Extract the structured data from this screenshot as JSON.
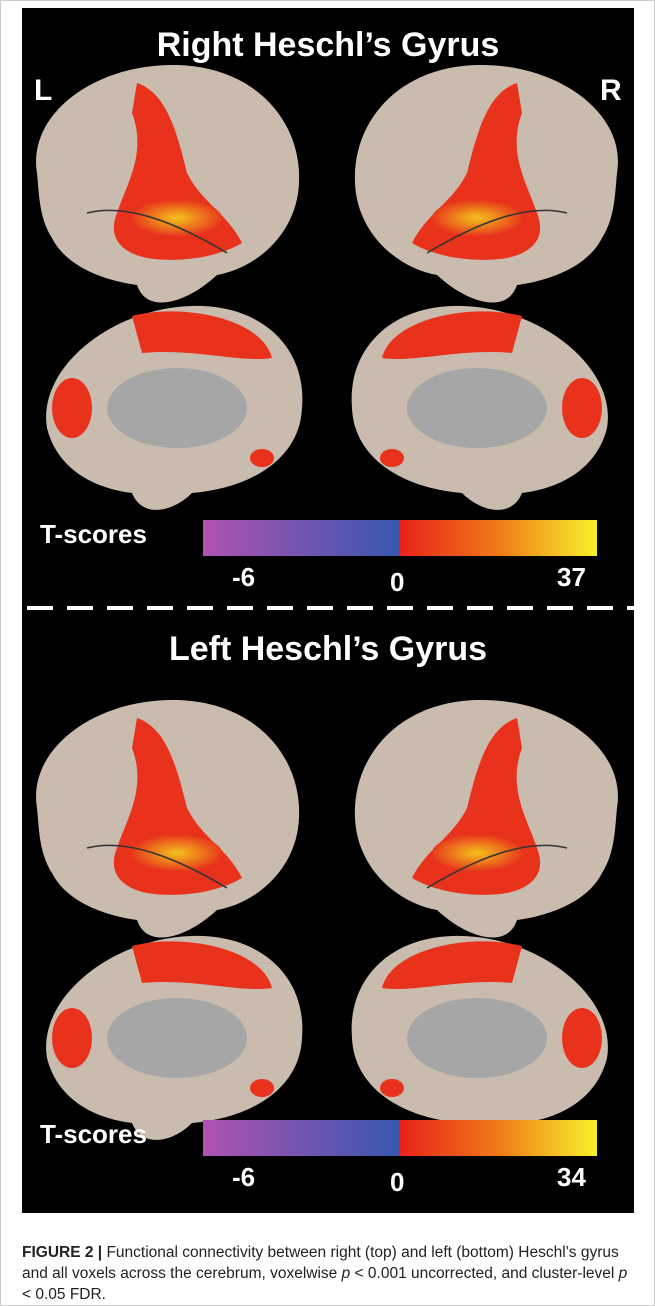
{
  "panels": [
    {
      "title": "Right Heschl’s Gyrus",
      "left_label": "L",
      "right_label": "R",
      "colorbar": {
        "label": "T-scores",
        "min": "-6",
        "zero": "0",
        "max": "37"
      }
    },
    {
      "title": "Left Heschl’s Gyrus",
      "colorbar": {
        "label": "T-scores",
        "min": "-6",
        "zero": "0",
        "max": "34"
      }
    }
  ],
  "caption": {
    "label": "FIGURE 2 |",
    "parts": [
      "Functional connectivity between right (top) and left (bottom) Heschl’s gyrus and all voxels across the cerebrum, voxelwise ",
      "p",
      " < 0.001 uncorrected, and cluster-level ",
      "p",
      " < 0.05 FDR."
    ]
  }
}
